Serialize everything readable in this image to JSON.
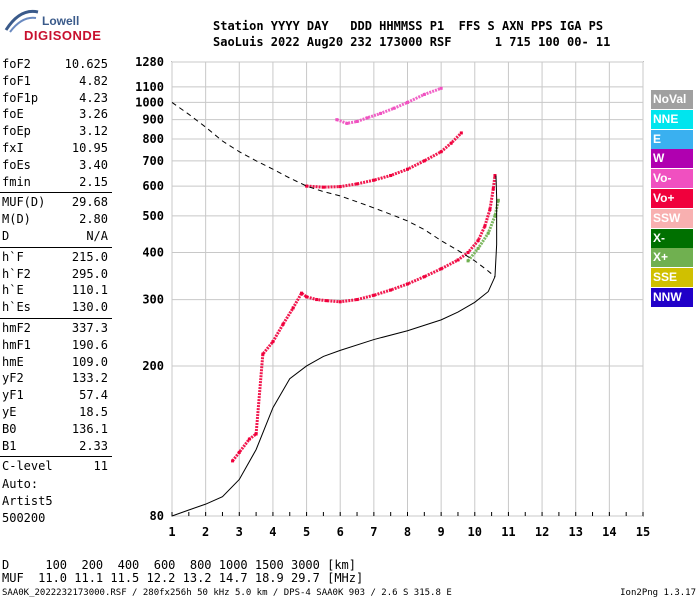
{
  "logo": {
    "line1": "Lowell",
    "line2": "DIGISONDE"
  },
  "header": {
    "line1": "Station YYYY DAY   DDD HHMMSS P1  FFS S AXN PPS IGA PS",
    "line2": "SaoLuis 2022 Aug20 232 173000 RSF      1 715 100 00- 11"
  },
  "params_group1": [
    {
      "name": "foF2",
      "value": "10.625"
    },
    {
      "name": "foF1",
      "value": "4.82"
    },
    {
      "name": "foF1p",
      "value": "4.23"
    },
    {
      "name": "foE",
      "value": "3.26"
    },
    {
      "name": "foEp",
      "value": "3.12"
    },
    {
      "name": "fxI",
      "value": "10.95"
    },
    {
      "name": "foEs",
      "value": "3.40"
    },
    {
      "name": "fmin",
      "value": "2.15"
    }
  ],
  "params_group2": [
    {
      "name": "MUF(D)",
      "value": "29.68"
    },
    {
      "name": "M(D)",
      "value": "2.80"
    },
    {
      "name": "D",
      "value": "N/A"
    }
  ],
  "params_group3": [
    {
      "name": "h`F",
      "value": "215.0"
    },
    {
      "name": "h`F2",
      "value": "295.0"
    },
    {
      "name": "h`E",
      "value": "110.1"
    },
    {
      "name": "h`Es",
      "value": "130.0"
    }
  ],
  "params_group4": [
    {
      "name": "hmF2",
      "value": "337.3"
    },
    {
      "name": "hmF1",
      "value": "190.6"
    },
    {
      "name": "hmE",
      "value": "109.0"
    },
    {
      "name": "yF2",
      "value": "133.2"
    },
    {
      "name": "yF1",
      "value": "57.4"
    },
    {
      "name": "yE",
      "value": "18.5"
    },
    {
      "name": "B0",
      "value": "136.1"
    },
    {
      "name": "B1",
      "value": "2.33"
    }
  ],
  "params_group5": [
    {
      "name": "C-level",
      "value": "11"
    }
  ],
  "auto": {
    "line1": "Auto:",
    "line2": "Artist5",
    "line3": "500200"
  },
  "legend": [
    {
      "label": "NoVal",
      "color": "#a0a0a0"
    },
    {
      "label": "NNE",
      "color": "#00e5ee"
    },
    {
      "label": "E",
      "color": "#3ab0f0"
    },
    {
      "label": "W",
      "color": "#b000b0"
    },
    {
      "label": "Vo-",
      "color": "#f050c0"
    },
    {
      "label": "Vo+",
      "color": "#f0003c"
    },
    {
      "label": "SSW",
      "color": "#f8b0b0"
    },
    {
      "label": "X-",
      "color": "#007000"
    },
    {
      "label": "X+",
      "color": "#70b050"
    },
    {
      "label": "SSE",
      "color": "#d0c000"
    },
    {
      "label": "NNW",
      "color": "#2000c8"
    }
  ],
  "muf_table": {
    "d_line": "D     100  200  400  600  800 1000 1500 3000 [km]",
    "muf_line": "MUF  11.0 11.1 11.5 12.2 13.2 14.7 18.9 29.7 [MHz]"
  },
  "footer": {
    "left": "SAA0K_2022232173000.RSF / 280fx256h 50 kHz 5.0 km / DPS-4 SAA0K 903 / 2.6 S 315.8 E",
    "right": "Ion2Png 1.3.17"
  },
  "chart_data": {
    "type": "scatter",
    "title": "",
    "xlabel": "",
    "ylabel": "",
    "x_ticks": [
      1,
      2,
      3,
      4,
      5,
      6,
      7,
      8,
      9,
      10,
      11,
      12,
      13,
      14,
      15
    ],
    "y_ticks": [
      80,
      200,
      300,
      400,
      500,
      600,
      700,
      800,
      900,
      1000,
      1100,
      1280
    ],
    "xlim": [
      1,
      15
    ],
    "ylim": [
      80,
      1280
    ],
    "y_scale": "log",
    "grid": true,
    "series": [
      {
        "color": "#f0003c",
        "style": "trace",
        "points": [
          [
            2.8,
            112
          ],
          [
            3.0,
            118
          ],
          [
            3.3,
            128
          ],
          [
            3.5,
            132
          ],
          [
            3.7,
            215
          ],
          [
            4.0,
            232
          ],
          [
            4.3,
            258
          ],
          [
            4.6,
            285
          ],
          [
            4.85,
            312
          ],
          [
            5.0,
            305
          ],
          [
            5.3,
            300
          ],
          [
            5.6,
            298
          ],
          [
            6.0,
            296
          ],
          [
            6.5,
            300
          ],
          [
            7.0,
            308
          ],
          [
            7.5,
            318
          ],
          [
            8.0,
            330
          ],
          [
            8.5,
            345
          ],
          [
            9.0,
            362
          ],
          [
            9.5,
            382
          ],
          [
            9.8,
            400
          ],
          [
            10.1,
            430
          ],
          [
            10.3,
            470
          ],
          [
            10.45,
            520
          ],
          [
            10.55,
            590
          ],
          [
            10.6,
            640
          ]
        ]
      },
      {
        "color": "#70b050",
        "style": "trace",
        "points": [
          [
            9.8,
            380
          ],
          [
            10.1,
            410
          ],
          [
            10.4,
            450
          ],
          [
            10.6,
            500
          ],
          [
            10.7,
            550
          ]
        ]
      },
      {
        "color": "#f0003c",
        "style": "trace",
        "points": [
          [
            5.0,
            600
          ],
          [
            5.5,
            596
          ],
          [
            6.0,
            598
          ],
          [
            6.5,
            608
          ],
          [
            7.0,
            622
          ],
          [
            7.5,
            640
          ],
          [
            8.0,
            665
          ],
          [
            8.5,
            700
          ],
          [
            9.0,
            740
          ],
          [
            9.3,
            780
          ],
          [
            9.6,
            830
          ]
        ]
      },
      {
        "color": "#f050c0",
        "style": "trace",
        "points": [
          [
            5.9,
            900
          ],
          [
            6.2,
            880
          ],
          [
            6.5,
            890
          ],
          [
            6.8,
            910
          ],
          [
            7.2,
            935
          ],
          [
            7.6,
            965
          ],
          [
            8.0,
            1000
          ],
          [
            8.5,
            1050
          ],
          [
            9.0,
            1090
          ]
        ]
      },
      {
        "color": "#000000",
        "style": "solid",
        "points": [
          [
            1.0,
            80
          ],
          [
            1.5,
            83
          ],
          [
            2.0,
            86
          ],
          [
            2.5,
            90
          ],
          [
            3.0,
            100
          ],
          [
            3.5,
            120
          ],
          [
            4.0,
            155
          ],
          [
            4.5,
            185
          ],
          [
            5.0,
            200
          ],
          [
            5.5,
            212
          ],
          [
            6.0,
            220
          ],
          [
            7.0,
            235
          ],
          [
            8.0,
            248
          ],
          [
            9.0,
            265
          ],
          [
            9.5,
            278
          ],
          [
            10.0,
            295
          ],
          [
            10.4,
            315
          ],
          [
            10.6,
            345
          ],
          [
            10.65,
            420
          ],
          [
            10.65,
            560
          ],
          [
            10.63,
            640
          ]
        ]
      },
      {
        "color": "#000000",
        "style": "dashed",
        "points": [
          [
            1.0,
            1000
          ],
          [
            1.5,
            930
          ],
          [
            2.0,
            860
          ],
          [
            2.5,
            790
          ],
          [
            3.0,
            740
          ],
          [
            3.5,
            700
          ],
          [
            4.0,
            665
          ],
          [
            4.5,
            630
          ],
          [
            5.0,
            600
          ],
          [
            5.5,
            580
          ],
          [
            6.0,
            565
          ],
          [
            6.5,
            545
          ],
          [
            7.0,
            525
          ],
          [
            7.5,
            505
          ],
          [
            8.0,
            485
          ],
          [
            8.5,
            460
          ],
          [
            9.0,
            430
          ],
          [
            9.5,
            405
          ],
          [
            10.0,
            380
          ],
          [
            10.35,
            360
          ],
          [
            10.6,
            345
          ]
        ]
      }
    ]
  }
}
